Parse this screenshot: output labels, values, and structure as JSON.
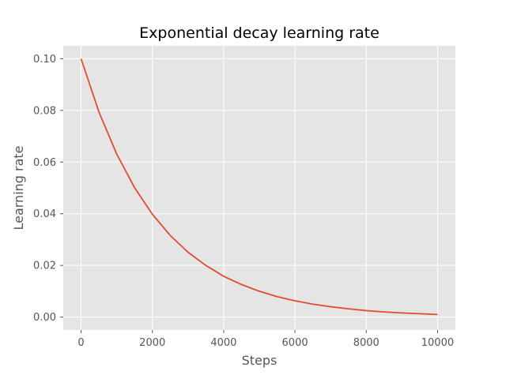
{
  "chart_data": {
    "type": "line",
    "title": "Exponential decay learning rate",
    "xlabel": "Steps",
    "ylabel": "Learning rate",
    "xlim": [
      -500,
      10500
    ],
    "ylim": [
      -0.005,
      0.105
    ],
    "xticks": [
      0,
      2000,
      4000,
      6000,
      8000,
      10000
    ],
    "xtick_labels": [
      "0",
      "2000",
      "4000",
      "6000",
      "8000",
      "10000"
    ],
    "yticks": [
      0.0,
      0.02,
      0.04,
      0.06,
      0.08,
      0.1
    ],
    "ytick_labels": [
      "0.00",
      "0.02",
      "0.04",
      "0.06",
      "0.08",
      "0.10"
    ],
    "grid": true,
    "background_color": "#e5e5e5",
    "grid_color": "#ffffff",
    "series": [
      {
        "color": "#e24a33",
        "x": [
          0,
          500,
          1000,
          1500,
          2000,
          2500,
          3000,
          3500,
          4000,
          4500,
          5000,
          5500,
          6000,
          6500,
          7000,
          7500,
          8000,
          8500,
          9000,
          9500,
          10000
        ],
        "y": [
          0.1,
          0.0794,
          0.0631,
          0.0501,
          0.0398,
          0.0316,
          0.0251,
          0.02,
          0.0158,
          0.0126,
          0.01,
          0.0079,
          0.0063,
          0.005,
          0.004,
          0.0032,
          0.0025,
          0.002,
          0.0016,
          0.0013,
          0.001
        ]
      }
    ]
  }
}
